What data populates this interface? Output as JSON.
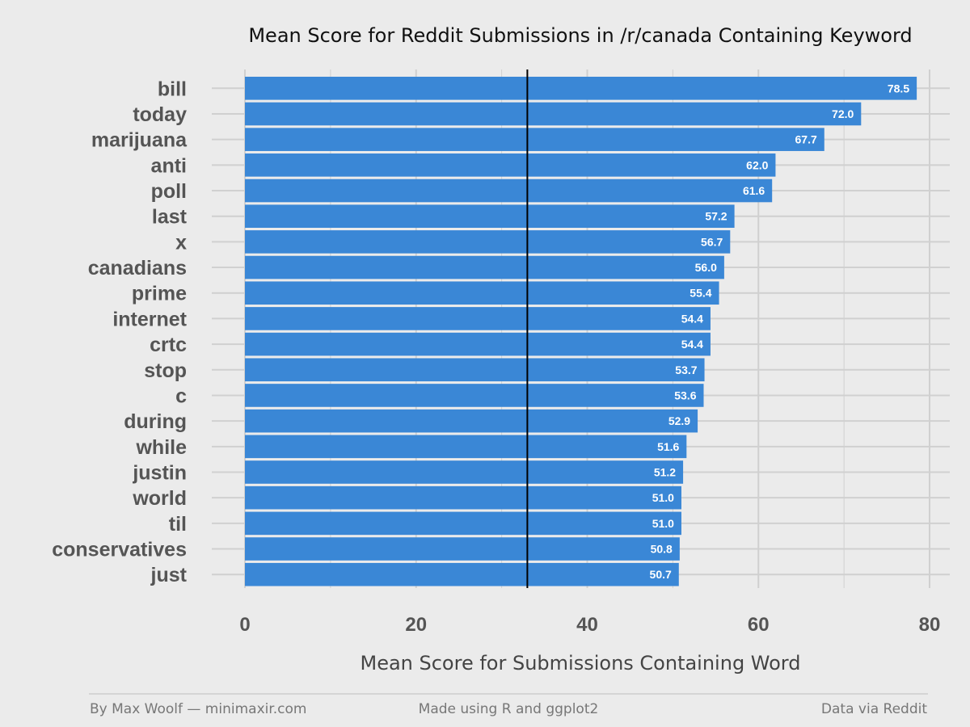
{
  "chart_data": {
    "type": "bar",
    "orientation": "horizontal",
    "title": "Mean Score for Reddit Submissions in /r/canada Containing Keyword",
    "xlabel": "Mean Score for Submissions Containing Word",
    "ylabel": "",
    "categories": [
      "bill",
      "today",
      "marijuana",
      "anti",
      "poll",
      "last",
      "x",
      "canadians",
      "prime",
      "internet",
      "crtc",
      "stop",
      "c",
      "during",
      "while",
      "justin",
      "world",
      "til",
      "conservatives",
      "just"
    ],
    "values": [
      78.5,
      72.0,
      67.7,
      62.0,
      61.6,
      57.2,
      56.7,
      56.0,
      55.4,
      54.4,
      54.4,
      53.7,
      53.6,
      52.9,
      51.6,
      51.2,
      51.0,
      51.0,
      50.8,
      50.7
    ],
    "value_labels": [
      "78.5",
      "72.0",
      "67.7",
      "62.0",
      "61.6",
      "57.2",
      "56.7",
      "56.0",
      "55.4",
      "54.4",
      "54.4",
      "53.7",
      "53.6",
      "52.9",
      "51.6",
      "51.2",
      "51.0",
      "51.0",
      "50.8",
      "50.7"
    ],
    "xlim": [
      0,
      80
    ],
    "xticks": [
      0,
      20,
      40,
      60,
      80
    ],
    "xtick_labels": [
      "0",
      "20",
      "40",
      "60",
      "80"
    ],
    "reference_line": 33,
    "grid": true,
    "legend": "none",
    "colors": {
      "bar": "#3a87d6",
      "background": "#ebebeb",
      "grid": "#d0d0d0",
      "reference_line": "#000000"
    }
  },
  "footer": {
    "left": "By Max Woolf — minimaxir.com",
    "center": "Made using R and ggplot2",
    "right": "Data via Reddit"
  }
}
